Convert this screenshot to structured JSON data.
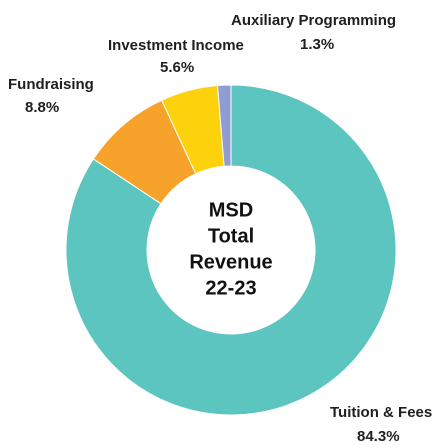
{
  "chart_data": {
    "type": "donut",
    "title": [
      "MSD",
      "Total",
      "Revenue",
      "22-23"
    ],
    "categories": [
      "Tuition & Fees",
      "Fundraising",
      "Investment Income",
      "Auxiliary Programming"
    ],
    "values": [
      84.3,
      8.8,
      5.6,
      1.3
    ],
    "value_labels": [
      "84.3%",
      "8.8%",
      "5.6%",
      "1.3%"
    ],
    "colors": [
      "#5cc5bf",
      "#f7a32b",
      "#fdd20c",
      "#8f9dd2"
    ]
  }
}
